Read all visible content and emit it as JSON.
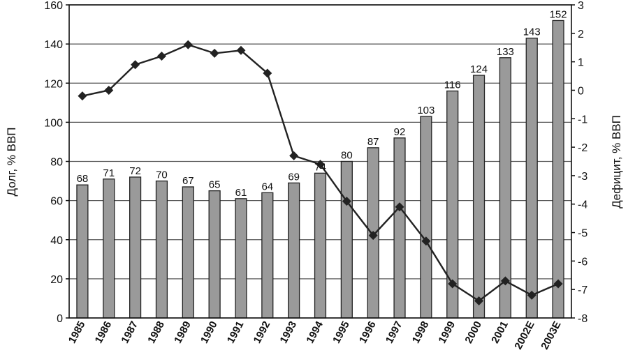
{
  "chart_data": {
    "type": "bar",
    "categories": [
      "1985",
      "1986",
      "1987",
      "1988",
      "1989",
      "1990",
      "1991",
      "1992",
      "1993",
      "1994",
      "1995",
      "1996",
      "1997",
      "1998",
      "1999",
      "2000",
      "2001",
      "2002E",
      "2003E"
    ],
    "series": [
      {
        "type": "bar",
        "axis": "left",
        "values": [
          68,
          71,
          72,
          70,
          67,
          65,
          61,
          64,
          69,
          74,
          80,
          87,
          92,
          103,
          116,
          124,
          133,
          143,
          152
        ],
        "color": "#9a9a9a"
      },
      {
        "type": "line",
        "axis": "right",
        "values": [
          -0.2,
          0.0,
          0.9,
          1.2,
          1.6,
          1.3,
          1.4,
          0.6,
          -2.3,
          -2.6,
          -3.9,
          -5.1,
          -4.1,
          -5.3,
          -6.8,
          -7.4,
          -6.7,
          -7.2,
          -6.8
        ],
        "color": "#222222"
      }
    ],
    "ylabel": "Долг, % ВВП",
    "y2label": "Дефицит, % ВВП",
    "ylim": [
      0,
      160
    ],
    "y2lim": [
      -8,
      3
    ],
    "yticks": [
      0,
      20,
      40,
      60,
      80,
      100,
      120,
      140,
      160
    ],
    "y2ticks": [
      3,
      2,
      1,
      0,
      -1,
      -2,
      -3,
      -4,
      -5,
      -6,
      -7,
      -8
    ],
    "grid": true,
    "legend": "none"
  }
}
